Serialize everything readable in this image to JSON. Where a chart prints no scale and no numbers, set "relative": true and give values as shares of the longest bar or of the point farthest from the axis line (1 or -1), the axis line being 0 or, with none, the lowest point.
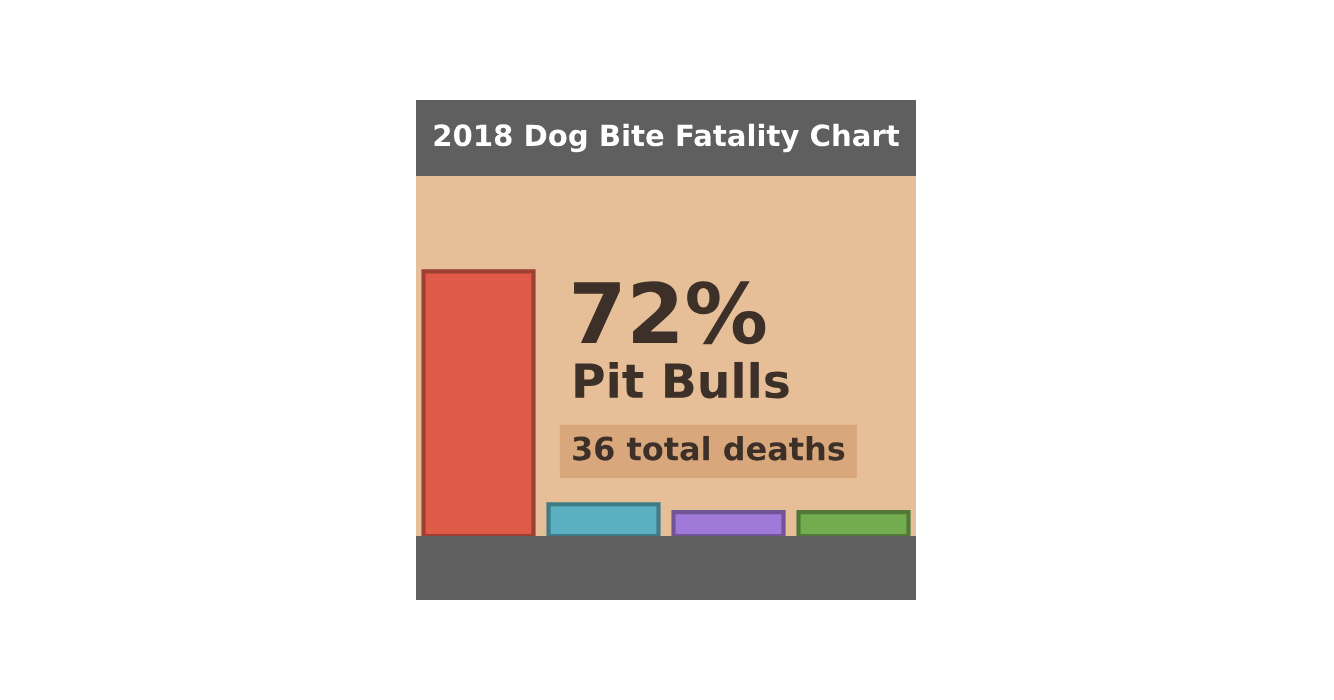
{
  "chart_data": {
    "type": "bar",
    "title": "2018 Dog Bite Fatality Chart",
    "categories": [
      null,
      null,
      null,
      null
    ],
    "values": [
      1,
      0.12,
      0.09,
      0.09
    ],
    "colors": [
      "#e05a48",
      "#5ab0c0",
      "#a07ad8",
      "#74ac50"
    ],
    "relative": true,
    "annotations": [
      "72%",
      "Pit Bulls",
      "36 total deaths"
    ],
    "grid": false,
    "legend": false
  }
}
